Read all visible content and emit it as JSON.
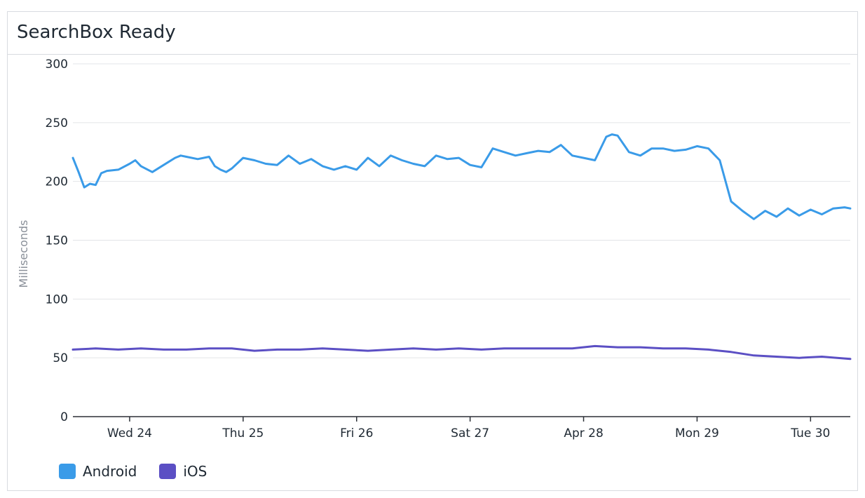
{
  "panel": {
    "title": "SearchBox Ready"
  },
  "chart_data": {
    "type": "line",
    "title": "SearchBox Ready",
    "xlabel": "",
    "ylabel": "Milliseconds",
    "ylim": [
      0,
      300
    ],
    "yticks": [
      0,
      50,
      100,
      150,
      200,
      250,
      300
    ],
    "xlim": [
      0,
      6.85
    ],
    "xticks": [
      {
        "label": "Wed 24",
        "x": 0.5
      },
      {
        "label": "Thu 25",
        "x": 1.5
      },
      {
        "label": "Fri 26",
        "x": 2.5
      },
      {
        "label": "Sat 27",
        "x": 3.5
      },
      {
        "label": "Apr 28",
        "x": 4.5
      },
      {
        "label": "Mon 29",
        "x": 5.5
      },
      {
        "label": "Tue 30",
        "x": 6.5
      }
    ],
    "grid": true,
    "legend_position": "bottom-left",
    "series": [
      {
        "name": "Android",
        "color": "#3a9be8",
        "x": [
          0,
          0.05,
          0.1,
          0.15,
          0.2,
          0.25,
          0.3,
          0.4,
          0.5,
          0.55,
          0.6,
          0.7,
          0.8,
          0.9,
          0.95,
          1.0,
          1.1,
          1.2,
          1.25,
          1.3,
          1.35,
          1.4,
          1.5,
          1.6,
          1.7,
          1.8,
          1.9,
          2.0,
          2.1,
          2.2,
          2.3,
          2.4,
          2.5,
          2.6,
          2.7,
          2.8,
          2.9,
          3.0,
          3.1,
          3.2,
          3.3,
          3.4,
          3.5,
          3.6,
          3.7,
          3.8,
          3.9,
          4.0,
          4.1,
          4.2,
          4.3,
          4.4,
          4.5,
          4.6,
          4.7,
          4.75,
          4.8,
          4.9,
          5.0,
          5.1,
          5.2,
          5.3,
          5.4,
          5.5,
          5.6,
          5.7,
          5.8,
          5.9,
          6.0,
          6.1,
          6.2,
          6.3,
          6.4,
          6.5,
          6.6,
          6.7,
          6.8,
          6.85
        ],
        "values": [
          220,
          208,
          195,
          198,
          197,
          207,
          209,
          210,
          215,
          218,
          213,
          208,
          214,
          220,
          222,
          221,
          219,
          221,
          213,
          210,
          208,
          211,
          220,
          218,
          215,
          214,
          222,
          215,
          219,
          213,
          210,
          213,
          210,
          220,
          213,
          222,
          218,
          215,
          213,
          222,
          219,
          220,
          214,
          212,
          228,
          225,
          222,
          224,
          226,
          225,
          231,
          222,
          220,
          218,
          238,
          240,
          239,
          225,
          222,
          228,
          228,
          226,
          227,
          230,
          228,
          218,
          183,
          175,
          168,
          175,
          170,
          177,
          171,
          176,
          172,
          177,
          178,
          177
        ],
        "ylim": [
          0,
          300
        ]
      },
      {
        "name": "iOS",
        "color": "#5b4fc4",
        "x": [
          0,
          0.2,
          0.4,
          0.6,
          0.8,
          1.0,
          1.2,
          1.4,
          1.6,
          1.8,
          2.0,
          2.2,
          2.4,
          2.6,
          2.8,
          3.0,
          3.2,
          3.4,
          3.6,
          3.8,
          4.0,
          4.2,
          4.4,
          4.6,
          4.8,
          5.0,
          5.2,
          5.4,
          5.6,
          5.8,
          6.0,
          6.2,
          6.4,
          6.6,
          6.85
        ],
        "values": [
          57,
          58,
          57,
          58,
          57,
          57,
          58,
          58,
          56,
          57,
          57,
          58,
          57,
          56,
          57,
          58,
          57,
          58,
          57,
          58,
          58,
          58,
          58,
          60,
          59,
          59,
          58,
          58,
          57,
          55,
          52,
          51,
          50,
          51,
          49
        ],
        "ylim": [
          0,
          300
        ]
      }
    ]
  }
}
